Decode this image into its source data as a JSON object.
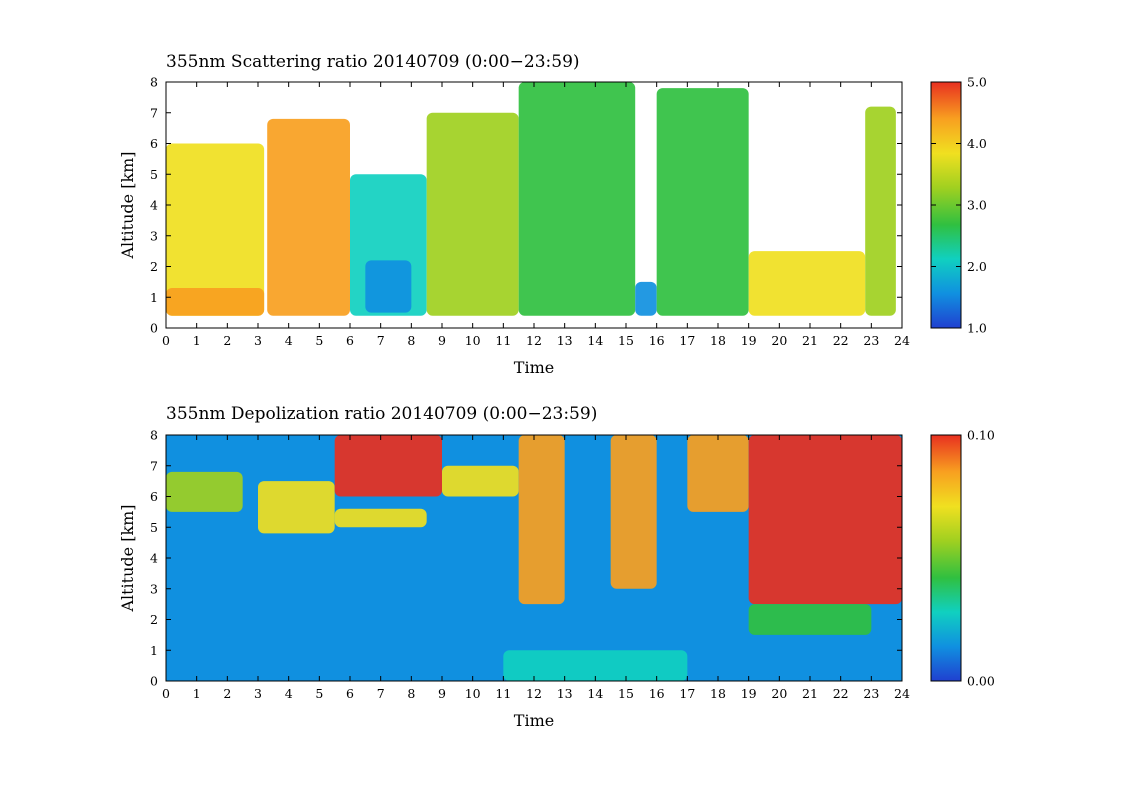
{
  "chart_data": [
    {
      "type": "heatmap",
      "title": "355nm Scattering ratio  20140709 (0:00−23:59)",
      "xlabel": "Time",
      "ylabel": "Altitude [km]",
      "xlim": [
        0,
        24
      ],
      "ylim": [
        0,
        8
      ],
      "x_ticks": [
        "0",
        "1",
        "2",
        "3",
        "4",
        "5",
        "6",
        "7",
        "8",
        "9",
        "10",
        "11",
        "12",
        "13",
        "14",
        "15",
        "16",
        "17",
        "18",
        "19",
        "20",
        "21",
        "22",
        "23",
        "24"
      ],
      "y_ticks": [
        "0",
        "1",
        "2",
        "3",
        "4",
        "5",
        "6",
        "7",
        "8"
      ],
      "colorbar": {
        "range": [
          1.0,
          5.0
        ],
        "ticks": [
          "1.0",
          "2.0",
          "3.0",
          "4.0",
          "5.0"
        ],
        "colormap": "rainbow",
        "colors": [
          "#2040d0",
          "#1090e0",
          "#10d0c0",
          "#30c040",
          "#a0d020",
          "#f0e020",
          "#f8a020",
          "#e83020"
        ]
      },
      "regions": [
        {
          "x": [
            0,
            3.2
          ],
          "y": [
            0.4,
            6
          ],
          "value": 3.6
        },
        {
          "x": [
            0,
            3.2
          ],
          "y": [
            0.4,
            1.3
          ],
          "value": 4.2
        },
        {
          "x": [
            3.3,
            6
          ],
          "y": [
            0.4,
            6.8
          ],
          "value": 4.3
        },
        {
          "x": [
            6,
            8.5
          ],
          "y": [
            0.4,
            5
          ],
          "value": 2.4
        },
        {
          "x": [
            6.5,
            8
          ],
          "y": [
            0.5,
            2.2
          ],
          "value": 1.5
        },
        {
          "x": [
            8.5,
            11.5
          ],
          "y": [
            0.4,
            7
          ],
          "value": 3.2
        },
        {
          "x": [
            11.5,
            15.3
          ],
          "y": [
            0.4,
            8
          ],
          "value": 2.6
        },
        {
          "x": [
            15.3,
            16
          ],
          "y": [
            0.4,
            1.5
          ],
          "value": 1.4
        },
        {
          "x": [
            16,
            19
          ],
          "y": [
            0.4,
            7.8
          ],
          "value": 2.9
        },
        {
          "x": [
            19,
            22.8
          ],
          "y": [
            0.4,
            2.5
          ],
          "value": 4.0
        },
        {
          "x": [
            22.8,
            23.8
          ],
          "y": [
            0.4,
            7.2
          ],
          "value": 3.4
        }
      ]
    },
    {
      "type": "heatmap",
      "title": "355nm Depolization ratio  20140709 (0:00−23:59)",
      "xlabel": "Time",
      "ylabel": "Altitude [km]",
      "xlim": [
        0,
        24
      ],
      "ylim": [
        0,
        8
      ],
      "x_ticks": [
        "0",
        "1",
        "2",
        "3",
        "4",
        "5",
        "6",
        "7",
        "8",
        "9",
        "10",
        "11",
        "12",
        "13",
        "14",
        "15",
        "16",
        "17",
        "18",
        "19",
        "20",
        "21",
        "22",
        "23",
        "24"
      ],
      "y_ticks": [
        "0",
        "1",
        "2",
        "3",
        "4",
        "5",
        "6",
        "7",
        "8"
      ],
      "colorbar": {
        "range": [
          0.0,
          0.1
        ],
        "ticks": [
          "0.00",
          "0.10"
        ],
        "colormap": "rainbow",
        "colors": [
          "#2040d0",
          "#1090e0",
          "#10d0c0",
          "#30c040",
          "#a0d020",
          "#f0e020",
          "#f8a020",
          "#e83020"
        ]
      },
      "background_value": 0.01,
      "regions": [
        {
          "x": [
            0,
            2.5
          ],
          "y": [
            5.5,
            6.8
          ],
          "value": 0.055
        },
        {
          "x": [
            3,
            5.5
          ],
          "y": [
            4.8,
            6.5
          ],
          "value": 0.07
        },
        {
          "x": [
            5.5,
            8.5
          ],
          "y": [
            5,
            5.6
          ],
          "value": 0.065
        },
        {
          "x": [
            5.5,
            9
          ],
          "y": [
            6,
            8
          ],
          "value": 0.1
        },
        {
          "x": [
            9,
            11.5
          ],
          "y": [
            6,
            7
          ],
          "value": 0.075
        },
        {
          "x": [
            11.5,
            13
          ],
          "y": [
            2.5,
            8
          ],
          "value": 0.09
        },
        {
          "x": [
            14.5,
            16
          ],
          "y": [
            3,
            8
          ],
          "value": 0.085
        },
        {
          "x": [
            17,
            19
          ],
          "y": [
            5.5,
            8
          ],
          "value": 0.08
        },
        {
          "x": [
            19,
            24
          ],
          "y": [
            2.5,
            8
          ],
          "value": 0.1
        },
        {
          "x": [
            11,
            17
          ],
          "y": [
            0,
            1
          ],
          "value": 0.035
        },
        {
          "x": [
            19,
            23
          ],
          "y": [
            1.5,
            2.5
          ],
          "value": 0.04
        }
      ]
    }
  ]
}
